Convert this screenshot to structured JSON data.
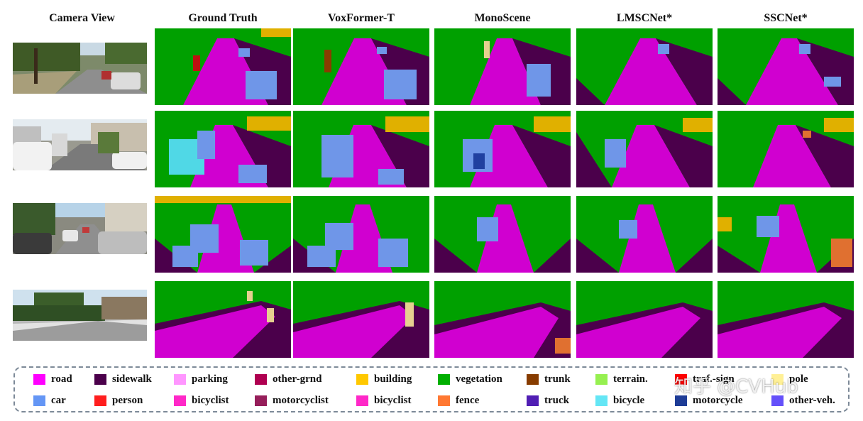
{
  "headers": [
    "Camera View",
    "Ground Truth",
    "VoxFormer-T",
    "MonoScene",
    "LMSCNet*",
    "SSCNet*"
  ],
  "legend": [
    {
      "label": "road",
      "color": "#ff00ff"
    },
    {
      "label": "sidewalk",
      "color": "#4b004b"
    },
    {
      "label": "parking",
      "color": "#ff96ff"
    },
    {
      "label": "other-grnd",
      "color": "#af0050"
    },
    {
      "label": "building",
      "color": "#ffc800"
    },
    {
      "label": "vegetation",
      "color": "#00af00"
    },
    {
      "label": "trunk",
      "color": "#873c00"
    },
    {
      "label": "terrain.",
      "color": "#96f050"
    },
    {
      "label": "traf.-sign",
      "color": "#ff0000"
    },
    {
      "label": "pole",
      "color": "#fff096"
    },
    {
      "label": "car",
      "color": "#6496f5"
    },
    {
      "label": "person",
      "color": "#ff1e1e"
    },
    {
      "label": "bicyclist",
      "color": "#ff28c8"
    },
    {
      "label": "motorcyclist",
      "color": "#961e5a"
    },
    {
      "label": "bicyclist",
      "color": "#ff28c8"
    },
    {
      "label": "fence",
      "color": "#ff7832"
    },
    {
      "label": "truck",
      "color": "#501eb4"
    },
    {
      "label": "bicycle",
      "color": "#64e6f5"
    },
    {
      "label": "motorcycle",
      "color": "#1e3c96"
    },
    {
      "label": "other-veh.",
      "color": "#6450fa"
    }
  ],
  "watermark": "知乎 @CVHub"
}
